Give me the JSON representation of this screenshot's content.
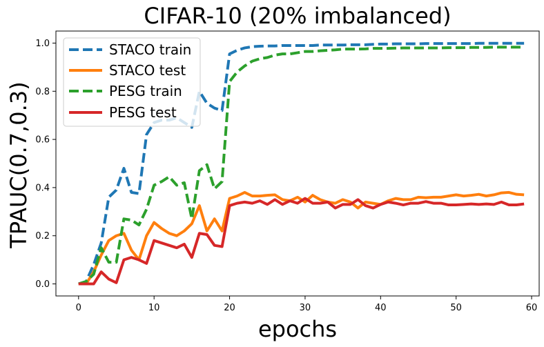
{
  "chart_data": {
    "type": "line",
    "title": "CIFAR-10 (20% imbalanced)",
    "xlabel": "epochs",
    "ylabel": "TPAUC(0.7,0.3)",
    "xlim": [
      -3,
      61
    ],
    "ylim": [
      -0.05,
      1.05
    ],
    "xticks": [
      0,
      10,
      20,
      30,
      40,
      50,
      60
    ],
    "yticks": [
      0.0,
      0.2,
      0.4,
      0.6,
      0.8,
      1.0
    ],
    "xtick_labels": [
      "0",
      "10",
      "20",
      "30",
      "40",
      "50",
      "60"
    ],
    "ytick_labels": [
      "0.0",
      "0.2",
      "0.4",
      "0.6",
      "0.8",
      "1.0"
    ],
    "legend_position": "top-left",
    "grid": false,
    "x": [
      0,
      1,
      2,
      3,
      4,
      5,
      6,
      7,
      8,
      9,
      10,
      11,
      12,
      13,
      14,
      15,
      16,
      17,
      18,
      19,
      20,
      21,
      22,
      23,
      24,
      25,
      26,
      27,
      28,
      29,
      30,
      31,
      32,
      33,
      34,
      35,
      36,
      37,
      38,
      39,
      40,
      41,
      42,
      43,
      44,
      45,
      46,
      47,
      48,
      49,
      50,
      51,
      52,
      53,
      54,
      55,
      56,
      57,
      58,
      59
    ],
    "series": [
      {
        "name": "STACO train",
        "color": "#1f77b4",
        "dash": "dashed",
        "values": [
          0.0,
          0.01,
          0.08,
          0.17,
          0.36,
          0.39,
          0.48,
          0.38,
          0.375,
          0.62,
          0.67,
          0.68,
          0.68,
          0.69,
          0.67,
          0.65,
          0.8,
          0.75,
          0.73,
          0.72,
          0.955,
          0.97,
          0.98,
          0.985,
          0.987,
          0.988,
          0.988,
          0.99,
          0.99,
          0.99,
          0.99,
          0.99,
          0.992,
          0.992,
          0.992,
          0.992,
          0.993,
          0.993,
          0.993,
          0.995,
          0.996,
          0.996,
          0.997,
          0.997,
          0.997,
          0.997,
          0.998,
          0.998,
          0.998,
          0.998,
          0.998,
          0.998,
          0.998,
          0.999,
          0.999,
          0.999,
          0.999,
          0.999,
          0.999,
          0.999
        ]
      },
      {
        "name": "STACO test",
        "color": "#ff7f0e",
        "dash": "solid",
        "values": [
          0.0,
          0.0,
          0.05,
          0.12,
          0.18,
          0.2,
          0.21,
          0.14,
          0.1,
          0.2,
          0.255,
          0.23,
          0.21,
          0.2,
          0.22,
          0.25,
          0.325,
          0.22,
          0.27,
          0.22,
          0.355,
          0.365,
          0.38,
          0.365,
          0.365,
          0.368,
          0.37,
          0.35,
          0.345,
          0.36,
          0.34,
          0.368,
          0.35,
          0.34,
          0.335,
          0.35,
          0.34,
          0.315,
          0.34,
          0.335,
          0.33,
          0.345,
          0.355,
          0.35,
          0.35,
          0.36,
          0.358,
          0.36,
          0.36,
          0.365,
          0.37,
          0.365,
          0.368,
          0.372,
          0.365,
          0.37,
          0.378,
          0.38,
          0.372,
          0.37
        ]
      },
      {
        "name": "PESG train",
        "color": "#2ca02c",
        "dash": "dashed",
        "values": [
          0.0,
          0.01,
          0.04,
          0.15,
          0.09,
          0.09,
          0.27,
          0.265,
          0.245,
          0.31,
          0.41,
          0.425,
          0.445,
          0.41,
          0.42,
          0.27,
          0.47,
          0.495,
          0.395,
          0.425,
          0.84,
          0.88,
          0.905,
          0.925,
          0.935,
          0.94,
          0.95,
          0.955,
          0.955,
          0.96,
          0.965,
          0.965,
          0.968,
          0.97,
          0.972,
          0.975,
          0.975,
          0.975,
          0.976,
          0.978,
          0.978,
          0.978,
          0.979,
          0.98,
          0.98,
          0.98,
          0.98,
          0.98,
          0.98,
          0.981,
          0.981,
          0.981,
          0.982,
          0.982,
          0.982,
          0.983,
          0.983,
          0.983,
          0.983,
          0.983
        ]
      },
      {
        "name": "PESG test",
        "color": "#d62728",
        "dash": "solid",
        "values": [
          0.0,
          0.0,
          0.0,
          0.05,
          0.02,
          0.005,
          0.1,
          0.11,
          0.1,
          0.085,
          0.18,
          0.17,
          0.16,
          0.15,
          0.165,
          0.11,
          0.21,
          0.205,
          0.16,
          0.155,
          0.325,
          0.335,
          0.34,
          0.335,
          0.345,
          0.33,
          0.35,
          0.33,
          0.345,
          0.335,
          0.355,
          0.335,
          0.335,
          0.34,
          0.315,
          0.33,
          0.33,
          0.35,
          0.325,
          0.315,
          0.33,
          0.34,
          0.335,
          0.328,
          0.335,
          0.335,
          0.342,
          0.335,
          0.335,
          0.328,
          0.328,
          0.33,
          0.332,
          0.33,
          0.332,
          0.33,
          0.34,
          0.328,
          0.328,
          0.332
        ]
      }
    ]
  }
}
